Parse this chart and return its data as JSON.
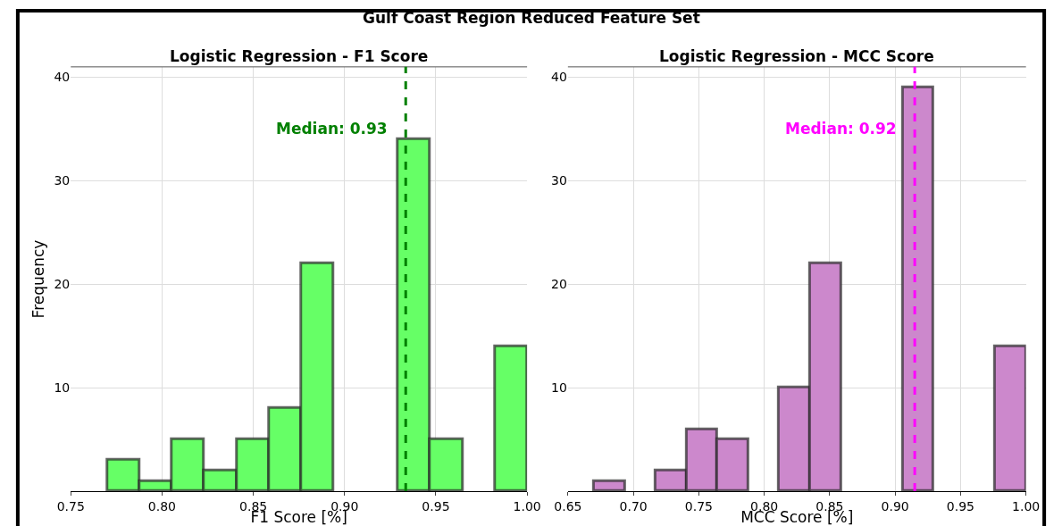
{
  "chart_data": [
    {
      "type": "histogram",
      "title": "Logistic Regression - F1 Score",
      "xlabel": "F1 Score [%]",
      "ylabel": "Frequency",
      "annotations": [
        "Gulf Coast Region Reduced Feature Set"
      ],
      "bins": [
        0.77,
        0.7877,
        0.8054,
        0.8231,
        0.8408,
        0.8585,
        0.8762,
        0.8938,
        0.9115,
        0.9292,
        0.9469,
        0.9646,
        0.9823,
        1.0
      ],
      "values": [
        3,
        1,
        5,
        2,
        5,
        8,
        22,
        0,
        0,
        34,
        5,
        0,
        14
      ],
      "color": "#66ff66",
      "xlim": [
        0.75,
        1.0
      ],
      "xticks": [
        {
          "value": 0.75,
          "label": "0.75"
        },
        {
          "value": 0.8,
          "label": "0.80"
        },
        {
          "value": 0.85,
          "label": "0.85"
        },
        {
          "value": 0.9,
          "label": "0.90"
        },
        {
          "value": 0.95,
          "label": "0.95"
        },
        {
          "value": 1.0,
          "label": "1.00"
        }
      ],
      "ylim": [
        0,
        41
      ],
      "yticks": [
        10,
        20,
        30,
        40
      ],
      "grid": true,
      "ref_lines": [
        {
          "axis": "x",
          "value": 0.9335,
          "label": "Median: 0.93",
          "color": "#008000",
          "line_style": "dashed"
        }
      ]
    },
    {
      "type": "histogram",
      "title": "Logistic Regression - MCC Score",
      "xlabel": "MCC Score [%]",
      "bins": [
        0.67,
        0.6936,
        0.7171,
        0.7407,
        0.7643,
        0.7879,
        0.8114,
        0.835,
        0.8586,
        0.8821,
        0.9057,
        0.9293,
        0.9529,
        0.9764,
        1.0
      ],
      "values": [
        1,
        0,
        2,
        6,
        5,
        0,
        10,
        22,
        0,
        0,
        39,
        0,
        0,
        14
      ],
      "color": "#cc88cc",
      "xlim": [
        0.65,
        1.0
      ],
      "xticks": [
        {
          "value": 0.65,
          "label": "0.65"
        },
        {
          "value": 0.7,
          "label": "0.70"
        },
        {
          "value": 0.75,
          "label": "0.75"
        },
        {
          "value": 0.8,
          "label": "0.80"
        },
        {
          "value": 0.85,
          "label": "0.85"
        },
        {
          "value": 0.9,
          "label": "0.90"
        },
        {
          "value": 0.95,
          "label": "0.95"
        },
        {
          "value": 1.0,
          "label": "1.00"
        }
      ],
      "ylim": [
        0,
        41
      ],
      "yticks": [
        10,
        20,
        30,
        40
      ],
      "grid": true,
      "ref_lines": [
        {
          "axis": "x",
          "value": 0.915,
          "label": "Median: 0.92",
          "color": "#ff00ff",
          "line_style": "dashed"
        }
      ]
    }
  ]
}
